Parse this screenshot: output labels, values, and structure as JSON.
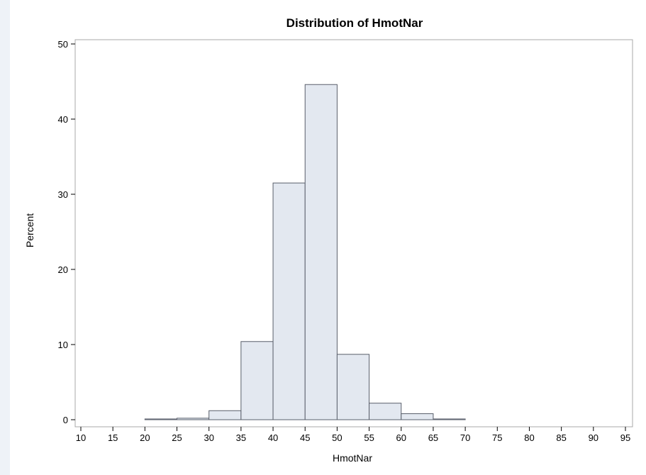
{
  "chart_data": {
    "type": "bar",
    "title": "Distribution of HmotNar",
    "xlabel": "HmotNar",
    "ylabel": "Percent",
    "xlim": [
      10,
      95
    ],
    "ylim": [
      0,
      50
    ],
    "x_ticks": [
      10,
      15,
      20,
      25,
      30,
      35,
      40,
      45,
      50,
      55,
      60,
      65,
      70,
      75,
      80,
      85,
      90,
      95
    ],
    "y_ticks": [
      0,
      10,
      20,
      30,
      40,
      50
    ],
    "bins": [
      {
        "start": 20,
        "end": 25,
        "value": 0.1
      },
      {
        "start": 25,
        "end": 30,
        "value": 0.2
      },
      {
        "start": 30,
        "end": 35,
        "value": 1.2
      },
      {
        "start": 35,
        "end": 40,
        "value": 10.4
      },
      {
        "start": 40,
        "end": 45,
        "value": 31.5
      },
      {
        "start": 45,
        "end": 50,
        "value": 44.6
      },
      {
        "start": 50,
        "end": 55,
        "value": 8.7
      },
      {
        "start": 55,
        "end": 60,
        "value": 2.2
      },
      {
        "start": 60,
        "end": 65,
        "value": 0.8
      },
      {
        "start": 65,
        "end": 70,
        "value": 0.1
      }
    ],
    "colors": {
      "bar_fill": "#e3e8f0",
      "bar_stroke": "#5a5f6b",
      "axis": "#999999"
    }
  }
}
